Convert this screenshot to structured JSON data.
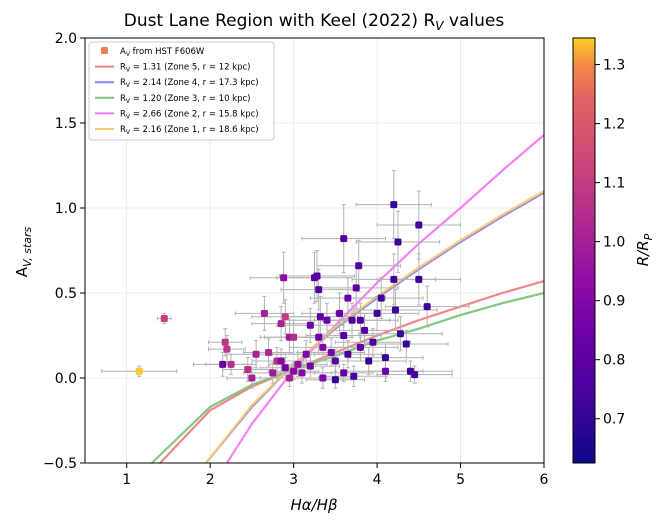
{
  "chart_data": {
    "type": "scatter",
    "title": "Dust Lane Region with Keel (2022) R",
    "title_sub": "V",
    "title_tail": " values",
    "xlabel": "Hα/Hβ",
    "ylabel_main": "A",
    "ylabel_sub": "V, stars",
    "xlim": [
      0.5,
      6
    ],
    "ylim": [
      -0.5,
      2.0
    ],
    "xticks": [
      1,
      2,
      3,
      4,
      5,
      6
    ],
    "yticks": [
      -0.5,
      0.0,
      0.5,
      1.0,
      1.5,
      2.0
    ],
    "xtick_labels": [
      "1",
      "2",
      "3",
      "4",
      "5",
      "6"
    ],
    "ytick_labels": [
      "−0.5",
      "0.0",
      "0.5",
      "1.0",
      "1.5",
      "2.0"
    ],
    "grid": true,
    "legend_placement": "top-left",
    "legend": [
      {
        "label": "A",
        "sub": "V",
        "tail": " from HST F606W",
        "kind": "marker",
        "color": "#e8834f"
      },
      {
        "label": "R",
        "sub": "V",
        "tail": " = 1.31 (Zone 5, r = 12 kpc)",
        "kind": "line",
        "color": "#f08080"
      },
      {
        "label": "R",
        "sub": "V",
        "tail": " = 2.14 (Zone 4, r = 17.3 kpc)",
        "kind": "line",
        "color": "#8a84ee"
      },
      {
        "label": "R",
        "sub": "V",
        "tail": " = 1.20 (Zone 3, r = 10 kpc)",
        "kind": "line",
        "color": "#7cc47c"
      },
      {
        "label": "R",
        "sub": "V",
        "tail": " = 2.66 (Zone 2, r = 15.8 kpc)",
        "kind": "line",
        "color": "#f77af7"
      },
      {
        "label": "R",
        "sub": "V",
        "tail": " = 2.16 (Zone 1, r = 18.6 kpc)",
        "kind": "line",
        "color": "#f9c872"
      }
    ],
    "curves": [
      {
        "name": "Zone 5",
        "color": "#f08080",
        "points": [
          [
            1.4,
            -0.5
          ],
          [
            2,
            -0.19
          ],
          [
            2.5,
            -0.05
          ],
          [
            3,
            0.05
          ],
          [
            3.5,
            0.15
          ],
          [
            4,
            0.25
          ],
          [
            4.5,
            0.34
          ],
          [
            5,
            0.42
          ],
          [
            5.5,
            0.5
          ],
          [
            6,
            0.57
          ]
        ]
      },
      {
        "name": "Zone 4",
        "color": "#8a84ee",
        "points": [
          [
            1.95,
            -0.5
          ],
          [
            2.5,
            -0.17
          ],
          [
            3,
            0.08
          ],
          [
            3.5,
            0.29
          ],
          [
            4,
            0.47
          ],
          [
            4.5,
            0.64
          ],
          [
            5,
            0.8
          ],
          [
            5.5,
            0.95
          ],
          [
            6,
            1.09
          ]
        ]
      },
      {
        "name": "Zone 3",
        "color": "#7cc47c",
        "points": [
          [
            1.3,
            -0.5
          ],
          [
            2,
            -0.17
          ],
          [
            2.5,
            -0.04
          ],
          [
            3,
            0.05
          ],
          [
            3.5,
            0.13
          ],
          [
            4,
            0.22
          ],
          [
            4.5,
            0.29
          ],
          [
            5,
            0.37
          ],
          [
            5.5,
            0.44
          ],
          [
            6,
            0.5
          ]
        ]
      },
      {
        "name": "Zone 2",
        "color": "#f77af7",
        "points": [
          [
            2.2,
            -0.5
          ],
          [
            2.5,
            -0.27
          ],
          [
            3,
            0.05
          ],
          [
            3.5,
            0.31
          ],
          [
            4,
            0.56
          ],
          [
            4.5,
            0.79
          ],
          [
            5,
            1.0
          ],
          [
            5.5,
            1.22
          ],
          [
            6,
            1.43
          ]
        ]
      },
      {
        "name": "Zone 1",
        "color": "#f9c872",
        "points": [
          [
            1.95,
            -0.5
          ],
          [
            2.5,
            -0.16
          ],
          [
            3,
            0.08
          ],
          [
            3.5,
            0.3
          ],
          [
            4,
            0.48
          ],
          [
            4.5,
            0.65
          ],
          [
            5,
            0.81
          ],
          [
            5.5,
            0.96
          ],
          [
            6,
            1.1
          ]
        ]
      }
    ],
    "points": [
      {
        "x": 1.15,
        "y": 0.04,
        "xerr": 0.45,
        "yerr": 0.03,
        "c": 1.34
      },
      {
        "x": 1.45,
        "y": 0.35,
        "xerr": 0.08,
        "yerr": 0.03,
        "c": 1.11
      },
      {
        "x": 2.18,
        "y": 0.21,
        "xerr": 0.2,
        "yerr": 0.08,
        "c": 1.07
      },
      {
        "x": 2.2,
        "y": 0.17,
        "xerr": 0.22,
        "yerr": 0.08,
        "c": 1.07
      },
      {
        "x": 2.25,
        "y": 0.08,
        "xerr": 0.3,
        "yerr": 0.06,
        "c": 1.05
      },
      {
        "x": 2.15,
        "y": 0.08,
        "xerr": 0.35,
        "yerr": 0.07,
        "c": 0.82
      },
      {
        "x": 2.45,
        "y": 0.05,
        "xerr": 0.3,
        "yerr": 0.07,
        "c": 1.05
      },
      {
        "x": 2.5,
        "y": 0.0,
        "xerr": 0.3,
        "yerr": 0.06,
        "c": 1.0
      },
      {
        "x": 2.55,
        "y": 0.14,
        "xerr": 0.35,
        "yerr": 0.08,
        "c": 1.0
      },
      {
        "x": 2.65,
        "y": 0.38,
        "xerr": 0.35,
        "yerr": 0.1,
        "c": 1.0
      },
      {
        "x": 2.7,
        "y": 0.15,
        "xerr": 0.3,
        "yerr": 0.08,
        "c": 1.03
      },
      {
        "x": 2.75,
        "y": 0.03,
        "xerr": 0.35,
        "yerr": 0.06,
        "c": 0.98
      },
      {
        "x": 2.8,
        "y": 0.1,
        "xerr": 0.3,
        "yerr": 0.08,
        "c": 1.05
      },
      {
        "x": 2.85,
        "y": 0.32,
        "xerr": 0.35,
        "yerr": 0.1,
        "c": 1.0
      },
      {
        "x": 2.88,
        "y": 0.59,
        "xerr": 0.4,
        "yerr": 0.15,
        "c": 0.93
      },
      {
        "x": 2.9,
        "y": 0.36,
        "xerr": 0.4,
        "yerr": 0.1,
        "c": 1.1
      },
      {
        "x": 2.95,
        "y": 0.24,
        "xerr": 0.35,
        "yerr": 0.1,
        "c": 0.97
      },
      {
        "x": 3.0,
        "y": 0.24,
        "xerr": 0.35,
        "yerr": 0.1,
        "c": 1.05
      },
      {
        "x": 2.95,
        "y": 0.0,
        "xerr": 0.35,
        "yerr": 0.05,
        "c": 1.0
      },
      {
        "x": 2.9,
        "y": 0.06,
        "xerr": 0.3,
        "yerr": 0.06,
        "c": 0.86
      },
      {
        "x": 2.85,
        "y": 0.1,
        "xerr": 0.3,
        "yerr": 0.07,
        "c": 0.9
      },
      {
        "x": 3.05,
        "y": 0.08,
        "xerr": 0.35,
        "yerr": 0.07,
        "c": 0.95
      },
      {
        "x": 3.1,
        "y": 0.03,
        "xerr": 0.35,
        "yerr": 0.06,
        "c": 0.9
      },
      {
        "x": 3.15,
        "y": 0.14,
        "xerr": 0.4,
        "yerr": 0.08,
        "c": 0.88
      },
      {
        "x": 3.2,
        "y": 0.31,
        "xerr": 0.4,
        "yerr": 0.1,
        "c": 0.82
      },
      {
        "x": 3.2,
        "y": 0.07,
        "xerr": 0.35,
        "yerr": 0.07,
        "c": 0.85
      },
      {
        "x": 3.25,
        "y": 0.59,
        "xerr": 0.45,
        "yerr": 0.15,
        "c": 0.8
      },
      {
        "x": 3.28,
        "y": 0.6,
        "xerr": 0.45,
        "yerr": 0.15,
        "c": 0.78
      },
      {
        "x": 3.3,
        "y": 0.52,
        "xerr": 0.45,
        "yerr": 0.12,
        "c": 0.76
      },
      {
        "x": 3.3,
        "y": 0.24,
        "xerr": 0.4,
        "yerr": 0.1,
        "c": 0.85
      },
      {
        "x": 3.32,
        "y": 0.36,
        "xerr": 0.45,
        "yerr": 0.12,
        "c": 0.8
      },
      {
        "x": 3.35,
        "y": 0.18,
        "xerr": 0.4,
        "yerr": 0.08,
        "c": 0.9
      },
      {
        "x": 3.35,
        "y": 0.0,
        "xerr": 0.35,
        "yerr": 0.06,
        "c": 0.88
      },
      {
        "x": 3.4,
        "y": 0.34,
        "xerr": 0.45,
        "yerr": 0.1,
        "c": 0.82
      },
      {
        "x": 3.45,
        "y": 0.15,
        "xerr": 0.4,
        "yerr": 0.08,
        "c": 0.86
      },
      {
        "x": 3.5,
        "y": -0.01,
        "xerr": 0.35,
        "yerr": 0.05,
        "c": 0.7
      },
      {
        "x": 3.5,
        "y": 0.1,
        "xerr": 0.4,
        "yerr": 0.07,
        "c": 0.78
      },
      {
        "x": 3.55,
        "y": 0.38,
        "xerr": 0.45,
        "yerr": 0.12,
        "c": 0.82
      },
      {
        "x": 3.6,
        "y": 0.82,
        "xerr": 0.5,
        "yerr": 0.2,
        "c": 0.78
      },
      {
        "x": 3.6,
        "y": 0.25,
        "xerr": 0.45,
        "yerr": 0.1,
        "c": 0.78
      },
      {
        "x": 3.65,
        "y": 0.47,
        "xerr": 0.45,
        "yerr": 0.12,
        "c": 0.82
      },
      {
        "x": 3.65,
        "y": 0.14,
        "xerr": 0.4,
        "yerr": 0.08,
        "c": 0.76
      },
      {
        "x": 3.7,
        "y": 0.34,
        "xerr": 0.45,
        "yerr": 0.1,
        "c": 0.78
      },
      {
        "x": 3.72,
        "y": 0.01,
        "xerr": 0.4,
        "yerr": 0.06,
        "c": 0.74
      },
      {
        "x": 3.75,
        "y": 0.53,
        "xerr": 0.5,
        "yerr": 0.12,
        "c": 0.8
      },
      {
        "x": 3.78,
        "y": 0.66,
        "xerr": 0.5,
        "yerr": 0.15,
        "c": 0.78
      },
      {
        "x": 3.8,
        "y": 0.18,
        "xerr": 0.45,
        "yerr": 0.08,
        "c": 0.8
      },
      {
        "x": 3.8,
        "y": 0.34,
        "xerr": 0.45,
        "yerr": 0.1,
        "c": 0.76
      },
      {
        "x": 3.85,
        "y": 0.28,
        "xerr": 0.45,
        "yerr": 0.1,
        "c": 0.8
      },
      {
        "x": 3.9,
        "y": 0.1,
        "xerr": 0.45,
        "yerr": 0.08,
        "c": 0.7
      },
      {
        "x": 3.95,
        "y": 0.21,
        "xerr": 0.45,
        "yerr": 0.08,
        "c": 0.74
      },
      {
        "x": 4.0,
        "y": 0.38,
        "xerr": 0.5,
        "yerr": 0.1,
        "c": 0.72
      },
      {
        "x": 4.05,
        "y": 0.47,
        "xerr": 0.5,
        "yerr": 0.12,
        "c": 0.72
      },
      {
        "x": 4.1,
        "y": 0.12,
        "xerr": 0.45,
        "yerr": 0.08,
        "c": 0.7
      },
      {
        "x": 4.1,
        "y": 0.04,
        "xerr": 0.45,
        "yerr": 0.06,
        "c": 0.82
      },
      {
        "x": 4.2,
        "y": 1.02,
        "xerr": 0.45,
        "yerr": 0.2,
        "c": 0.7
      },
      {
        "x": 4.2,
        "y": 0.58,
        "xerr": 0.5,
        "yerr": 0.15,
        "c": 0.72
      },
      {
        "x": 4.22,
        "y": 0.4,
        "xerr": 0.5,
        "yerr": 0.12,
        "c": 0.72
      },
      {
        "x": 4.25,
        "y": 0.8,
        "xerr": 0.5,
        "yerr": 0.18,
        "c": 0.72
      },
      {
        "x": 4.28,
        "y": 0.26,
        "xerr": 0.5,
        "yerr": 0.1,
        "c": 0.72
      },
      {
        "x": 4.35,
        "y": 0.2,
        "xerr": 0.5,
        "yerr": 0.08,
        "c": 0.7
      },
      {
        "x": 4.4,
        "y": 0.04,
        "xerr": 0.5,
        "yerr": 0.06,
        "c": 0.72
      },
      {
        "x": 4.45,
        "y": 0.02,
        "xerr": 0.45,
        "yerr": 0.05,
        "c": 0.74
      },
      {
        "x": 4.5,
        "y": 0.9,
        "xerr": 0.5,
        "yerr": 0.2,
        "c": 0.72
      },
      {
        "x": 4.5,
        "y": 0.58,
        "xerr": 0.5,
        "yerr": 0.15,
        "c": 0.7
      },
      {
        "x": 4.6,
        "y": 0.42,
        "xerr": 0.5,
        "yerr": 0.12,
        "c": 0.72
      },
      {
        "x": 3.0,
        "y": 0.04,
        "xerr": 0.3,
        "yerr": 0.05,
        "c": 0.92
      },
      {
        "x": 3.6,
        "y": 0.03,
        "xerr": 0.35,
        "yerr": 0.05,
        "c": 0.82
      }
    ],
    "colorbar": {
      "label": "R/R",
      "label_sub": "P",
      "min": 0.625,
      "max": 1.345,
      "ticks": [
        0.7,
        0.8,
        0.9,
        1.0,
        1.1,
        1.2,
        1.3
      ],
      "tick_labels": [
        "0.7",
        "0.8",
        "0.9",
        "1.0",
        "1.1",
        "1.2",
        "1.3"
      ],
      "colormap": "plasma"
    }
  }
}
